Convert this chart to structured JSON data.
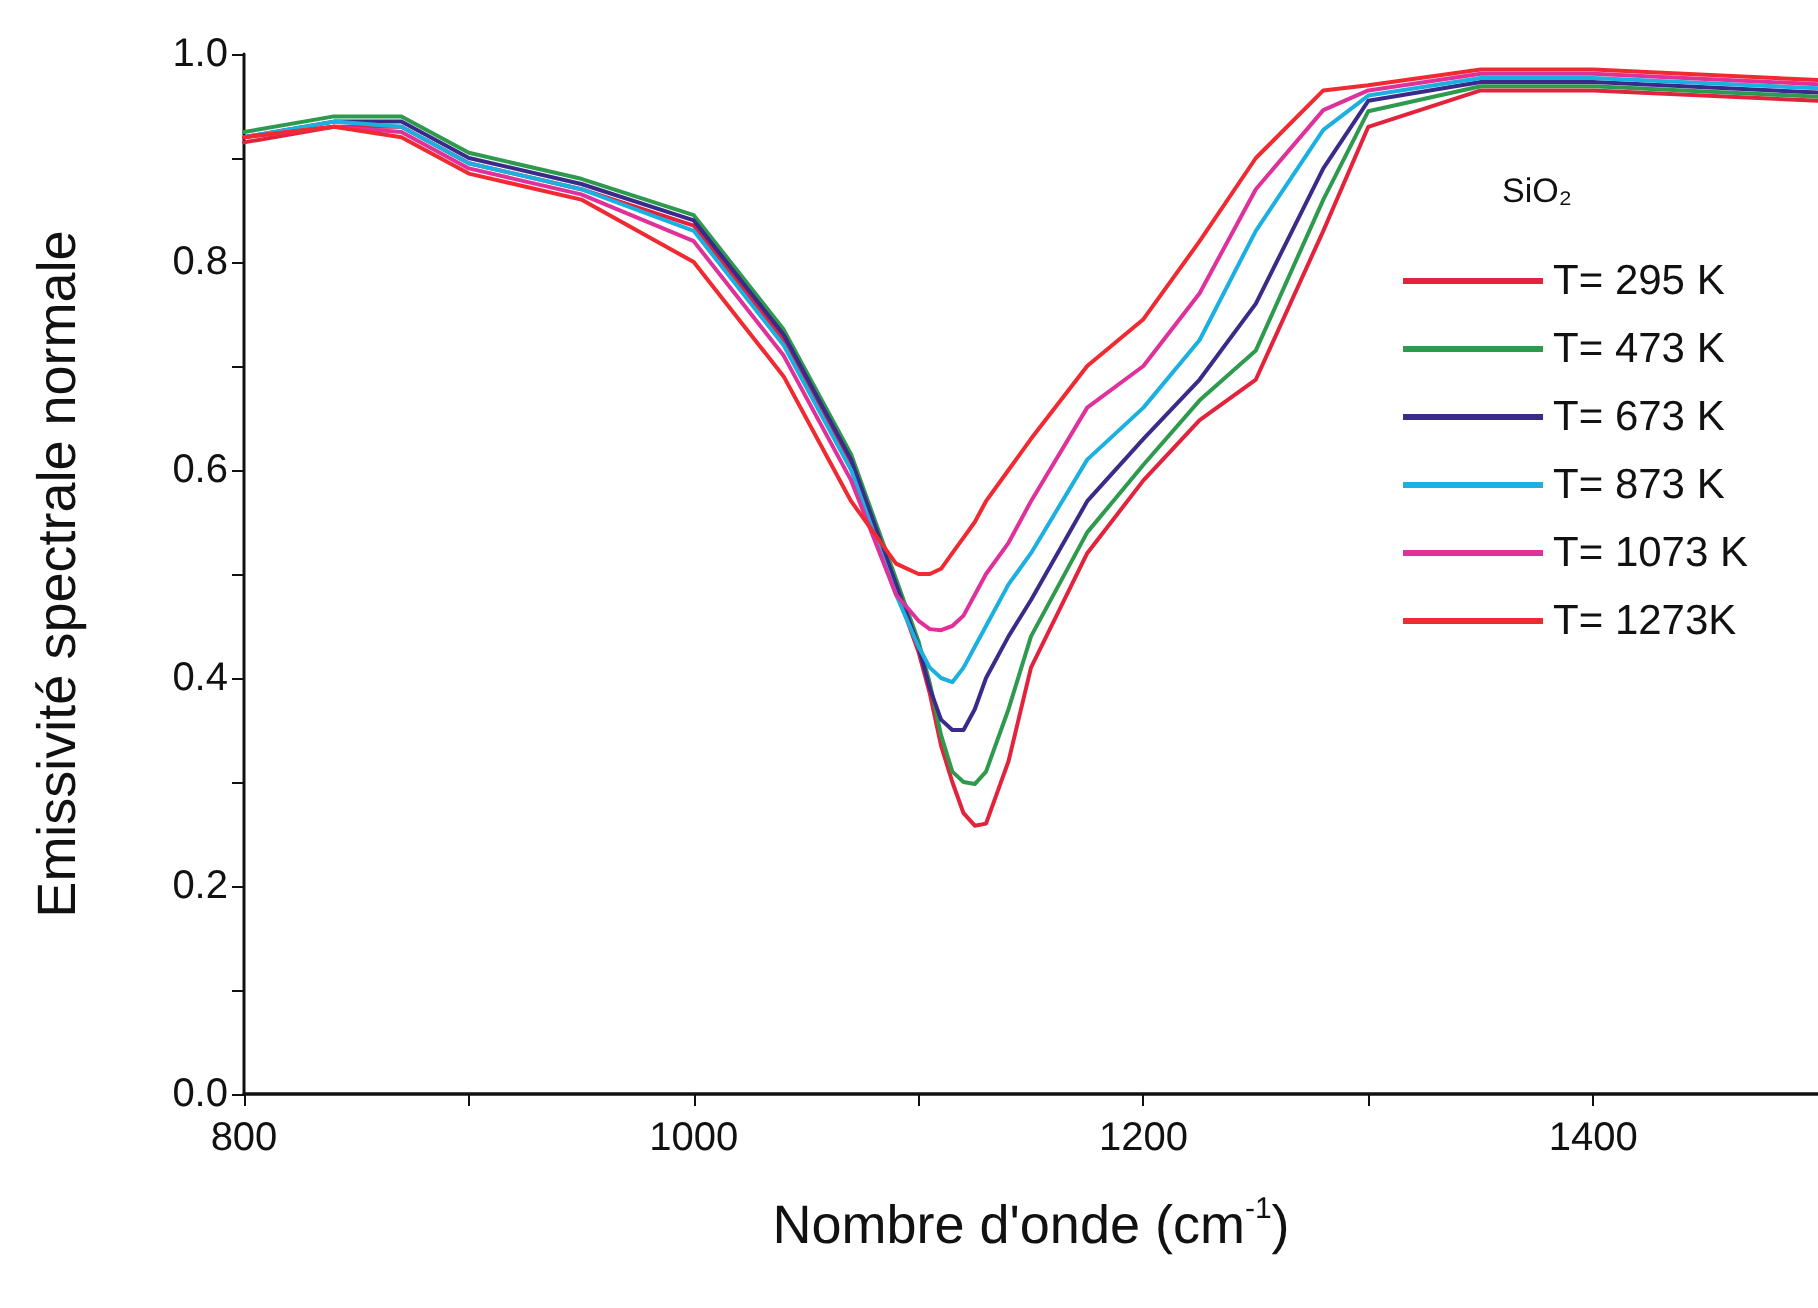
{
  "chart_data": {
    "type": "line",
    "xlabel": "Nombre d'onde (cm$^{-1}$)",
    "ylabel": "Emissivité spectrale normale",
    "legend_title": "SiO₂",
    "legend": "right",
    "x": [
      800,
      840,
      870,
      900,
      950,
      1000,
      1040,
      1070,
      1090,
      1100,
      1105,
      1110,
      1115,
      1120,
      1125,
      1130,
      1140,
      1150,
      1175,
      1200,
      1225,
      1250,
      1280,
      1300,
      1350,
      1400,
      1500
    ],
    "series": [
      {
        "name": "T= 295 K",
        "color": "#e3223c",
        "values": [
          0.915,
          0.93,
          0.93,
          0.895,
          0.87,
          0.835,
          0.725,
          0.605,
          0.485,
          0.425,
          0.385,
          0.335,
          0.3,
          0.27,
          0.258,
          0.26,
          0.32,
          0.41,
          0.52,
          0.59,
          0.648,
          0.687,
          0.83,
          0.93,
          0.965,
          0.965,
          0.955
        ]
      },
      {
        "name": "T= 473 K",
        "color": "#2e9a4e",
        "values": [
          0.925,
          0.94,
          0.94,
          0.905,
          0.88,
          0.845,
          0.735,
          0.615,
          0.495,
          0.435,
          0.395,
          0.345,
          0.31,
          0.3,
          0.298,
          0.31,
          0.37,
          0.44,
          0.54,
          0.605,
          0.667,
          0.715,
          0.86,
          0.945,
          0.969,
          0.969,
          0.959
        ]
      },
      {
        "name": "T= 673 K",
        "color": "#3a2a8a",
        "values": [
          0.92,
          0.935,
          0.935,
          0.9,
          0.875,
          0.84,
          0.73,
          0.61,
          0.49,
          0.43,
          0.39,
          0.36,
          0.35,
          0.35,
          0.37,
          0.4,
          0.44,
          0.475,
          0.57,
          0.63,
          0.687,
          0.76,
          0.89,
          0.955,
          0.973,
          0.973,
          0.963
        ]
      },
      {
        "name": "T= 873 K",
        "color": "#1ab0e0",
        "values": [
          0.92,
          0.935,
          0.93,
          0.895,
          0.87,
          0.83,
          0.72,
          0.6,
          0.48,
          0.43,
          0.41,
          0.4,
          0.396,
          0.41,
          0.43,
          0.45,
          0.49,
          0.52,
          0.61,
          0.66,
          0.725,
          0.83,
          0.927,
          0.96,
          0.977,
          0.977,
          0.967
        ]
      },
      {
        "name": "T= 1073 K",
        "color": "#e0309a",
        "values": [
          0.92,
          0.93,
          0.925,
          0.89,
          0.865,
          0.82,
          0.71,
          0.59,
          0.48,
          0.455,
          0.447,
          0.446,
          0.45,
          0.46,
          0.48,
          0.5,
          0.53,
          0.57,
          0.66,
          0.7,
          0.77,
          0.87,
          0.946,
          0.965,
          0.981,
          0.981,
          0.971
        ]
      },
      {
        "name": "T= 1273K",
        "color": "#f02a30",
        "values": [
          0.92,
          0.93,
          0.92,
          0.885,
          0.86,
          0.8,
          0.69,
          0.57,
          0.51,
          0.5,
          0.5,
          0.505,
          0.52,
          0.535,
          0.55,
          0.57,
          0.6,
          0.63,
          0.7,
          0.745,
          0.82,
          0.9,
          0.965,
          0.97,
          0.985,
          0.985,
          0.975
        ]
      }
    ],
    "xlim": [
      800,
      1500
    ],
    "xticks": [
      800,
      {
        "value": 900,
        "label": null
      },
      1000,
      {
        "value": 1100,
        "label": null
      },
      1200,
      {
        "value": 1300,
        "label": null
      },
      1400
    ],
    "ylim": [
      0,
      1
    ],
    "yticks": [
      {
        "value": 0,
        "label": "0.0"
      },
      {
        "value": 0.1,
        "label": null
      },
      {
        "value": 0.2,
        "label": "0.2"
      },
      {
        "value": 0.3,
        "label": null
      },
      {
        "value": 0.4,
        "label": "0.4"
      },
      {
        "value": 0.5,
        "label": null
      },
      {
        "value": 0.6,
        "label": "0.6"
      },
      {
        "value": 0.7,
        "label": null
      },
      {
        "value": 0.8,
        "label": "0.8"
      },
      {
        "value": 0.9,
        "label": null
      },
      {
        "value": 1,
        "label": "1.0"
      }
    ],
    "grid": false,
    "marker": "none",
    "line_style": "solid"
  }
}
